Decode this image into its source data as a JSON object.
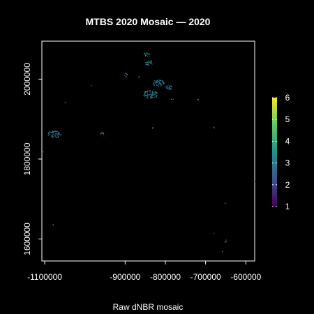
{
  "chart_data": {
    "type": "heatmap",
    "title": "MTBS 2020 Mosaic — 2020",
    "xlabel": "Raw dNBR mosaic",
    "ylabel": "",
    "xlim": [
      -1107000,
      -578000
    ],
    "ylim": [
      1545000,
      2095000
    ],
    "x_ticks": [
      {
        "value": -1100000,
        "label": "-1100000"
      },
      {
        "value": -900000,
        "label": "-900000"
      },
      {
        "value": -800000,
        "label": "-800000"
      },
      {
        "value": -700000,
        "label": "-700000"
      },
      {
        "value": -600000,
        "label": "-600000"
      }
    ],
    "y_ticks": [
      {
        "value": 1600000,
        "label": "1600000"
      },
      {
        "value": 1800000,
        "label": "1800000"
      },
      {
        "value": 2000000,
        "label": "2000000"
      }
    ],
    "colorbar": {
      "min": 1,
      "max": 6,
      "colormap": "viridis",
      "ticks": [
        {
          "value": 1,
          "label": "1"
        },
        {
          "value": 2,
          "label": "2"
        },
        {
          "value": 3,
          "label": "3"
        },
        {
          "value": 4,
          "label": "4"
        },
        {
          "value": 5,
          "label": "5"
        },
        {
          "value": 6,
          "label": "6"
        }
      ]
    },
    "grid": false,
    "background": "#000000",
    "fire_patches": [
      {
        "x": -847000,
        "y": 2063000,
        "w": 16000,
        "h": 10000,
        "value": 3
      },
      {
        "x": -843000,
        "y": 2042000,
        "w": 20000,
        "h": 14000,
        "value": 3
      },
      {
        "x": -838000,
        "y": 1963000,
        "w": 38000,
        "h": 20000,
        "value": 3
      },
      {
        "x": -818000,
        "y": 1991000,
        "w": 28000,
        "h": 18000,
        "value": 3
      },
      {
        "x": -792000,
        "y": 1980000,
        "w": 20000,
        "h": 12000,
        "value": 3
      },
      {
        "x": -1077000,
        "y": 1863000,
        "w": 34000,
        "h": 18000,
        "value": 3
      },
      {
        "x": -957000,
        "y": 1865000,
        "w": 14000,
        "h": 7000,
        "value": 3
      },
      {
        "x": -899000,
        "y": 2012000,
        "w": 8000,
        "h": 9000,
        "value": 3
      },
      {
        "x": -867000,
        "y": 2008000,
        "w": 5000,
        "h": 5000,
        "value": 3
      },
      {
        "x": -784000,
        "y": 1950000,
        "w": 5000,
        "h": 5000,
        "value": 3
      },
      {
        "x": -832000,
        "y": 1880000,
        "w": 4000,
        "h": 7000,
        "value": 3
      },
      {
        "x": -651000,
        "y": 1595000,
        "w": 5000,
        "h": 8000,
        "value": 3
      },
      {
        "x": -660000,
        "y": 1570000,
        "w": 3000,
        "h": 5000,
        "value": 3
      },
      {
        "x": -1080000,
        "y": 1637000,
        "w": 3000,
        "h": 3000,
        "value": 3
      },
      {
        "x": -680000,
        "y": 1615000,
        "w": 3000,
        "h": 3000,
        "value": 2
      },
      {
        "x": -720000,
        "y": 1950000,
        "w": 3000,
        "h": 3000,
        "value": 3
      },
      {
        "x": -1050000,
        "y": 1942000,
        "w": 3000,
        "h": 3000,
        "value": 2
      },
      {
        "x": -1105000,
        "y": 1820000,
        "w": 3000,
        "h": 3000,
        "value": 2
      },
      {
        "x": -580000,
        "y": 1745000,
        "w": 3000,
        "h": 3000,
        "value": 2
      },
      {
        "x": -652000,
        "y": 1690000,
        "w": 3000,
        "h": 3000,
        "value": 2
      },
      {
        "x": -985000,
        "y": 1985000,
        "w": 3000,
        "h": 3000,
        "value": 2
      },
      {
        "x": -680000,
        "y": 1880000,
        "w": 3000,
        "h": 3000,
        "value": 3
      }
    ]
  }
}
